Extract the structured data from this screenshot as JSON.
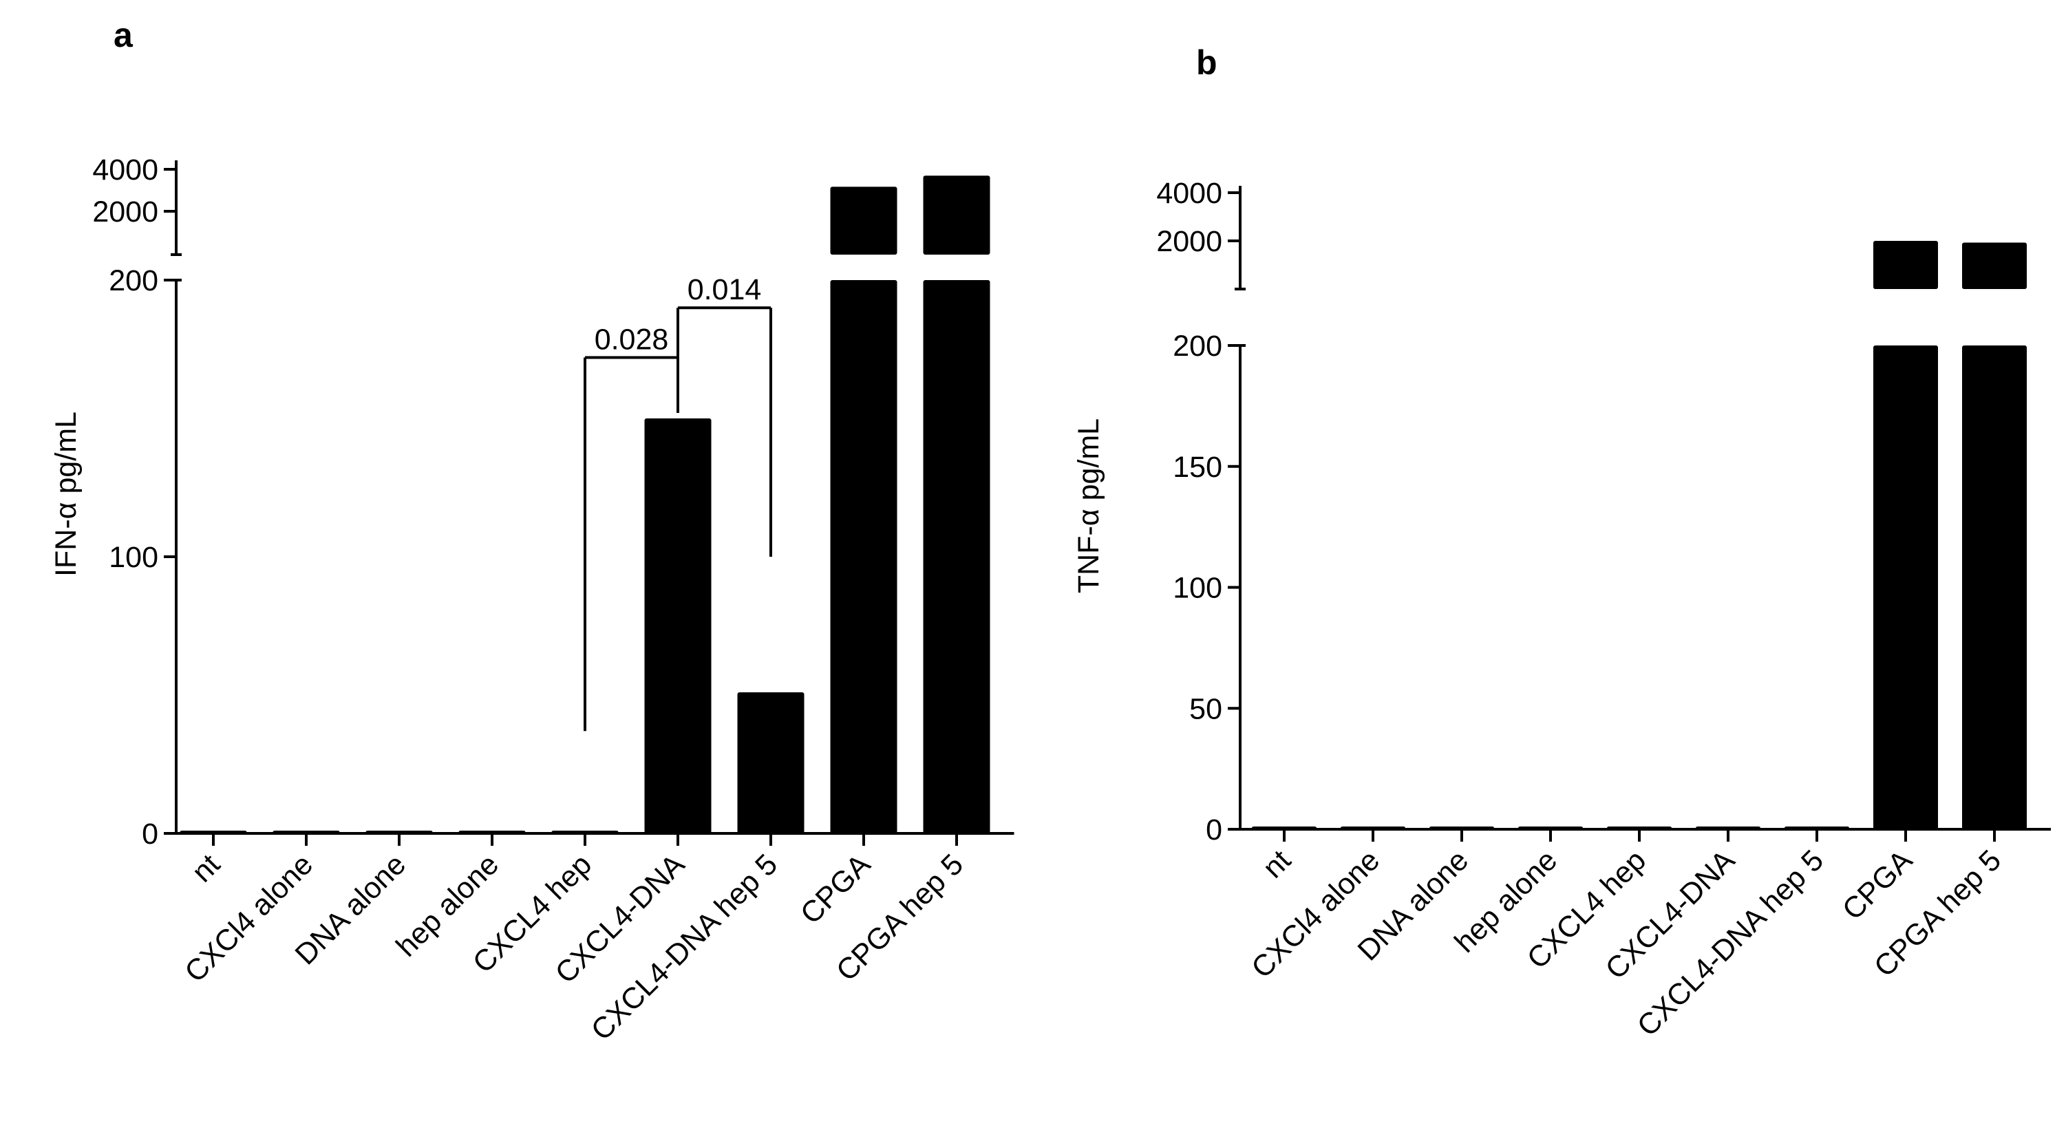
{
  "figure": {
    "panels": [
      "a",
      "b"
    ]
  },
  "chart_data": [
    {
      "type": "bar",
      "panel_label": "a",
      "title": "",
      "xlabel": "",
      "ylabel": "IFN-α pg/mL",
      "y_axis_broken": true,
      "ylim_lower": [
        0,
        200
      ],
      "ylim_upper": [
        1000,
        4000
      ],
      "y_ticks_lower": [
        "0",
        "100",
        "200"
      ],
      "y_ticks_upper": [
        "2000",
        "4000"
      ],
      "categories": [
        "nt",
        "CXCl4 alone",
        "DNA alone",
        "hep alone",
        "CXCL4 hep",
        "CXCL4-DNA",
        "CXCL4-DNA hep 5",
        "CPGA",
        "CPGA hep 5"
      ],
      "values": [
        1,
        1,
        1,
        1,
        1,
        150,
        51,
        3000,
        3600
      ],
      "annotations": [
        {
          "label": "0.028",
          "from": "CXCL4 hep",
          "to": "CXCL4-DNA"
        },
        {
          "label": "0.014",
          "from": "CXCL4-DNA",
          "to": "CXCL4-DNA hep 5"
        }
      ]
    },
    {
      "type": "bar",
      "panel_label": "b",
      "title": "",
      "xlabel": "",
      "ylabel": "TNF-α pg/mL",
      "y_axis_broken": true,
      "ylim_lower": [
        0,
        200
      ],
      "ylim_upper": [
        1000,
        4000
      ],
      "y_ticks_lower": [
        "0",
        "50",
        "100",
        "150",
        "200"
      ],
      "y_ticks_upper": [
        "2000",
        "4000"
      ],
      "categories": [
        "nt",
        "CXCl4 alone",
        "DNA alone",
        "hep alone",
        "CXCL4 hep",
        "CXCL4-DNA",
        "CXCL4-DNA hep 5",
        "CPGA",
        "CPGA hep 5"
      ],
      "values": [
        1,
        1,
        1,
        1,
        1,
        1,
        1,
        2000,
        1950
      ],
      "annotations": []
    }
  ]
}
